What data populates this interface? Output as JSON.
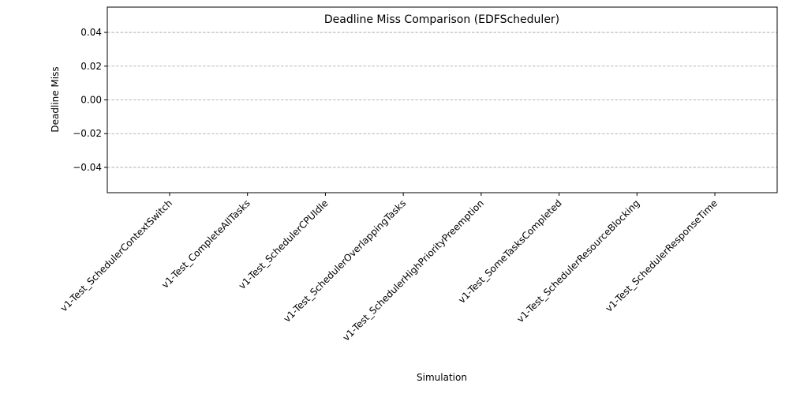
{
  "chart_data": {
    "type": "bar",
    "title": "Deadline Miss Comparison (EDFScheduler)",
    "xlabel": "Simulation",
    "ylabel": "Deadline Miss",
    "categories": [
      "v1-Test_SchedulerContextSwitch",
      "v1-Test_CompleteAllTasks",
      "v1-Test_SchedulerCPUIdle",
      "v1-Test_SchedulerOverlappingTasks",
      "v1-Test_SchedulerHighPriorityPreemption",
      "v1-Test_SomeTasksCompleted",
      "v1-Test_SchedulerResourceBlocking",
      "v1-Test_SchedulerResponseTime"
    ],
    "values": [
      0,
      0,
      0,
      0,
      0,
      0,
      0,
      0
    ],
    "ylim": [
      -0.055,
      0.055
    ],
    "yticks": [
      -0.04,
      -0.02,
      0.0,
      0.02,
      0.04
    ],
    "ytick_labels": [
      "−0.04",
      "−0.02",
      "0.00",
      "0.02",
      "0.04"
    ],
    "grid": "y-dashed",
    "grid_color": "#a0a0a0",
    "bar_color": "#1f77b4",
    "legend": "none"
  }
}
